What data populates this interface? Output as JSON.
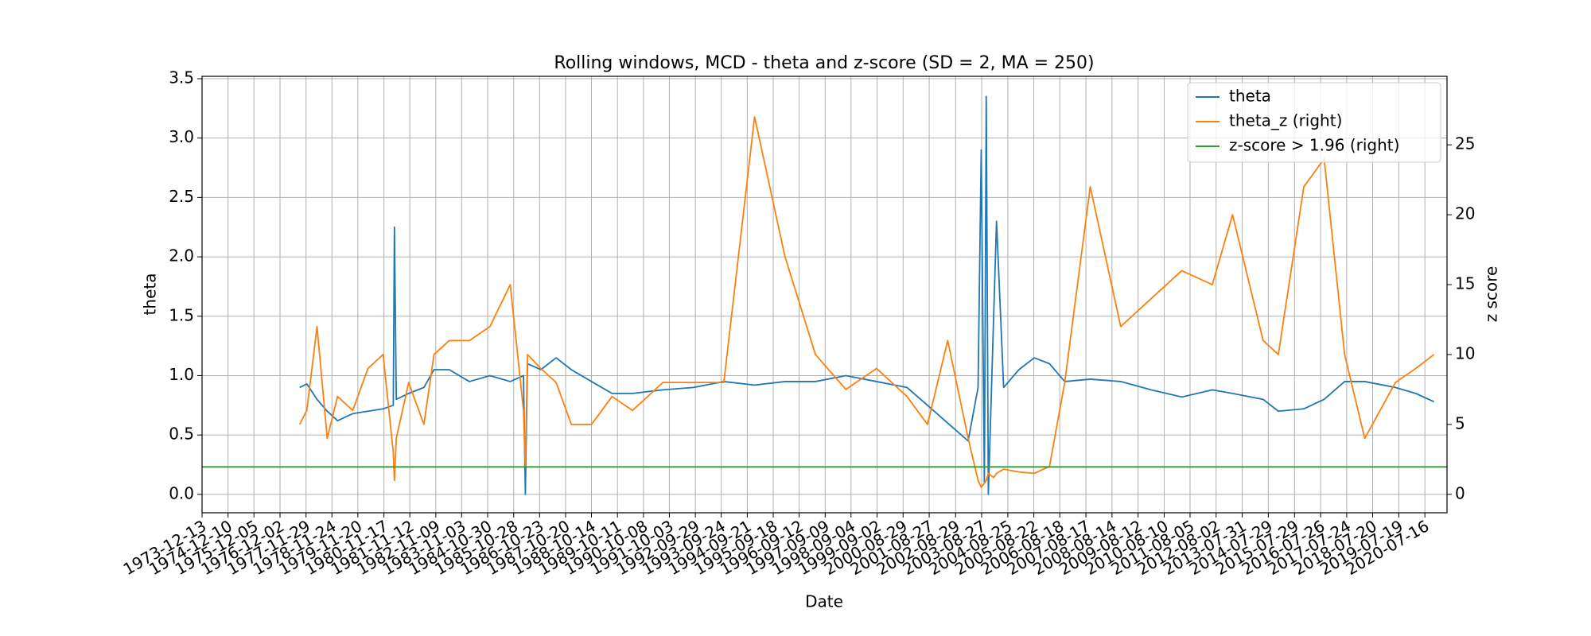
{
  "chart_data": {
    "type": "line",
    "title": "Rolling windows, MCD - theta and z-score (SD = 2, MA = 250)",
    "x_label": "Date",
    "y_label": "theta",
    "y2_label": "z score",
    "grid": true,
    "legend": "upper right",
    "xlim": [
      "1973-12-13",
      "2021-05-20"
    ],
    "xticks": [
      "1973-12-13",
      "1974-12-10",
      "1975-12-05",
      "1976-12-02",
      "1977-11-29",
      "1978-11-24",
      "1979-11-20",
      "1980-11-17",
      "1981-11-12",
      "1982-11-09",
      "1983-11-03",
      "1984-10-30",
      "1985-10-28",
      "1986-10-23",
      "1987-10-20",
      "1988-10-14",
      "1989-10-11",
      "1990-10-08",
      "1991-10-03",
      "1992-09-29",
      "1993-09-24",
      "1994-09-21",
      "1995-09-18",
      "1996-09-12",
      "1997-09-09",
      "1998-09-04",
      "1999-09-02",
      "2000-08-29",
      "2001-08-27",
      "2002-08-29",
      "2003-08-27",
      "2004-08-25",
      "2005-08-22",
      "2006-08-18",
      "2007-08-17",
      "2008-08-14",
      "2009-08-12",
      "2010-08-10",
      "2011-08-05",
      "2012-08-02",
      "2013-07-31",
      "2014-07-29",
      "2015-07-29",
      "2016-07-26",
      "2017-07-24",
      "2018-07-20",
      "2019-07-19",
      "2020-07-16"
    ],
    "ylim": [
      -0.155,
      3.52
    ],
    "yticks": [
      {
        "value": 0,
        "label": "0.0"
      },
      0.5,
      {
        "value": 1,
        "label": "1.0"
      },
      1.5,
      {
        "value": 2,
        "label": "2.0"
      },
      2.5,
      {
        "value": 3,
        "label": "3.0"
      },
      3.5
    ],
    "y2lim": [
      -1.32,
      29.9
    ],
    "y2ticks": [
      0,
      5,
      10,
      15,
      20,
      25
    ],
    "x": [
      "1977-09-01",
      "1977-12-10",
      "1978-05-01",
      "1978-09-20",
      "1979-02-10",
      "1979-09-10",
      "1980-04-08",
      "1980-11-05",
      "1981-03-27",
      "1981-04-12",
      "1981-05-08",
      "1981-10-27",
      "1982-05-27",
      "1982-10-15",
      "1983-05-15",
      "1984-02-20",
      "1984-12-01",
      "1985-09-10",
      "1986-03-13",
      "1986-04-08",
      "1986-05-08",
      "1986-11-10",
      "1987-06-10",
      "1988-01-08",
      "1988-10-15",
      "1989-07-28",
      "1990-05-08",
      "1991-07-05",
      "1992-09-01",
      "1993-10-30",
      "1995-01-01",
      "1996-02-28",
      "1997-04-27",
      "1998-06-25",
      "1999-08-25",
      "2000-10-22",
      "2001-08-03",
      "2002-05-12",
      "2003-02-20",
      "2003-07-08",
      "2003-08-21",
      "2003-10-04",
      "2003-10-30",
      "2003-11-28",
      "2004-02-10",
      "2004-03-21",
      "2004-06-28",
      "2005-01-26",
      "2005-08-28",
      "2006-03-28",
      "2006-10-26",
      "2007-10-16",
      "2008-12-13",
      "2010-02-10",
      "2011-04-12",
      "2012-06-10",
      "2013-03-18",
      "2014-05-18",
      "2014-12-16",
      "2015-12-05",
      "2016-09-13",
      "2017-06-25",
      "2018-04-01",
      "2019-06-02",
      "2020-03-10",
      "2020-11-20"
    ],
    "series": [
      {
        "name": "theta",
        "color": "#1f77b4",
        "axis": "y",
        "values": [
          0.9,
          0.93,
          0.8,
          0.7,
          0.62,
          0.68,
          0.7,
          0.72,
          0.75,
          2.25,
          0.8,
          0.85,
          0.9,
          1.05,
          1.05,
          0.95,
          1.0,
          0.95,
          1.0,
          0.0,
          1.1,
          1.05,
          1.15,
          1.05,
          0.95,
          0.85,
          0.85,
          0.88,
          0.9,
          0.95,
          0.92,
          0.95,
          0.95,
          1.0,
          0.95,
          0.9,
          0.75,
          0.6,
          0.45,
          0.9,
          2.9,
          0.1,
          3.35,
          0.0,
          1.5,
          2.3,
          0.9,
          1.05,
          1.15,
          1.1,
          0.95,
          0.97,
          0.95,
          0.88,
          0.82,
          0.88,
          0.85,
          0.8,
          0.7,
          0.72,
          0.8,
          0.95,
          0.95,
          0.9,
          0.85,
          0.78
        ]
      },
      {
        "name": "theta_z (right)",
        "color": "#ff7f0e",
        "axis": "y2",
        "values": [
          5,
          6,
          12,
          4,
          7,
          6,
          9,
          10,
          3,
          1,
          4,
          8,
          5,
          10,
          11,
          11,
          12,
          15,
          6,
          2,
          10,
          9,
          8,
          5,
          5,
          7,
          6,
          8,
          8,
          8,
          27,
          17,
          10,
          7.5,
          9,
          7,
          5,
          11,
          4,
          1,
          0.5,
          0.8,
          1,
          1.5,
          1.2,
          1.5,
          1.8,
          1.6,
          1.5,
          2,
          8,
          22,
          12,
          14,
          16,
          15,
          20,
          11,
          10,
          22,
          24,
          10,
          4,
          8,
          9,
          10
        ]
      },
      {
        "name": "z-score > 1.96 (right)",
        "color": "#2ca02c",
        "axis": "y2",
        "x": [
          "1973-12-13",
          "2021-05-20"
        ],
        "values": [
          1.96,
          1.96
        ]
      }
    ]
  }
}
